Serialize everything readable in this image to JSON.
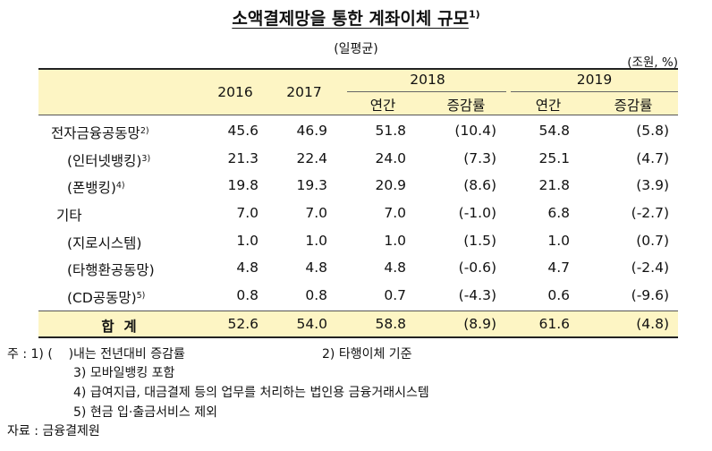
{
  "title": "소액결제망을 통한 계좌이체 규모",
  "title_sup": "1)",
  "subtitle": "(일평균)",
  "unit": "(조원, %)",
  "header": {
    "y2016": "2016",
    "y2017": "2017",
    "y2018": "2018",
    "y2019": "2019",
    "annual": "연간",
    "growth": "증감률"
  },
  "rows": [
    {
      "label": "전자금융공동망",
      "sup": "2)",
      "v2016": "45.6",
      "v2017": "46.9",
      "a2018": "51.8",
      "g2018": "(10.4)",
      "a2019": "54.8",
      "g2019": "(5.8)"
    },
    {
      "label": "(인터넷뱅킹)",
      "sup": "3)",
      "v2016": "21.3",
      "v2017": "22.4",
      "a2018": "24.0",
      "g2018": "(7.3)",
      "a2019": "25.1",
      "g2019": "(4.7)"
    },
    {
      "label": "(폰뱅킹)",
      "sup": "4)",
      "v2016": "19.8",
      "v2017": "19.3",
      "a2018": "20.9",
      "g2018": "(8.6)",
      "a2019": "21.8",
      "g2019": "(3.9)"
    },
    {
      "label": "기타",
      "sup": "",
      "v2016": "7.0",
      "v2017": "7.0",
      "a2018": "7.0",
      "g2018": "(-1.0)",
      "a2019": "6.8",
      "g2019": "(-2.7)"
    },
    {
      "label": "(지로시스템)",
      "sup": "",
      "v2016": "1.0",
      "v2017": "1.0",
      "a2018": "1.0",
      "g2018": "(1.5)",
      "a2019": "1.0",
      "g2019": "(0.7)"
    },
    {
      "label": "(타행환공동망)",
      "sup": "",
      "v2016": "4.8",
      "v2017": "4.8",
      "a2018": "4.8",
      "g2018": "(-0.6)",
      "a2019": "4.7",
      "g2019": "(-2.4)"
    },
    {
      "label": "(CD공동망)",
      "sup": "5)",
      "v2016": "0.8",
      "v2017": "0.8",
      "a2018": "0.7",
      "g2018": "(-4.3)",
      "a2019": "0.6",
      "g2019": "(-9.6)"
    }
  ],
  "total": {
    "label": "합  계",
    "v2016": "52.6",
    "v2017": "54.0",
    "a2018": "58.8",
    "g2018": "(8.9)",
    "a2019": "61.6",
    "g2019": "(4.8)"
  },
  "notes": {
    "n1": "주 : 1) (    )내는 전년대비 증감률",
    "n2": "2) 타행이체 기준",
    "n3": "3) 모바일뱅킹 포함",
    "n4": "4) 급여지급, 대금결제 등의 업무를 처리하는 법인용 금융거래시스템",
    "n5": "5) 현금 입·출금서비스 제외",
    "source": "자료 : 금융결제원"
  }
}
